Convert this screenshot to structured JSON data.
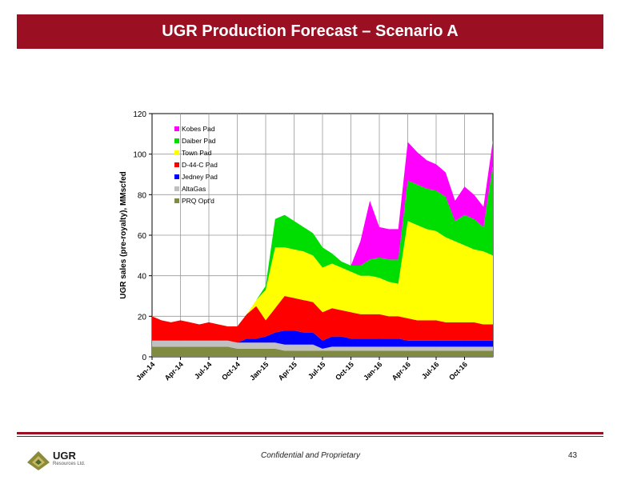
{
  "header": {
    "title": "UGR Production Forecast – Scenario A"
  },
  "footer": {
    "confidential": "Confidential and Proprietary",
    "page_number": "43",
    "logo_text": "UGR",
    "logo_subtext": "Resources Ltd."
  },
  "colors": {
    "banner": "#9b0f22"
  },
  "chart_data": {
    "type": "area",
    "stacked": true,
    "title": "",
    "xlabel": "",
    "ylabel": "UGR sales (pre-royalty), MMscfed",
    "ylim": [
      0,
      120
    ],
    "yticks": [
      0,
      20,
      40,
      60,
      80,
      100,
      120
    ],
    "xlim": [
      "Jan-14",
      "Jan-17"
    ],
    "xticks": [
      "Jan-14",
      "Apr-14",
      "Jul-14",
      "Oct-14",
      "Jan-15",
      "Apr-15",
      "Jul-15",
      "Oct-15",
      "Jan-16",
      "Apr-16",
      "Jul-16",
      "Oct-16"
    ],
    "grid": true,
    "legend_position": "top-left",
    "x": [
      0,
      1,
      2,
      3,
      4,
      5,
      6,
      7,
      8,
      9,
      10,
      11,
      12,
      13,
      14,
      15,
      16,
      17,
      18,
      19,
      20,
      21,
      22,
      23,
      24,
      25,
      26,
      27,
      28,
      29,
      30,
      31,
      32,
      33,
      34,
      35,
      36
    ],
    "x_unit": "months since Jan-14",
    "series": [
      {
        "name": "PRQ Opt'd",
        "color": "#808a40",
        "values": [
          5,
          5,
          5,
          5,
          5,
          5,
          5,
          5,
          5,
          4,
          4,
          4,
          4,
          4,
          3,
          3,
          3,
          3,
          3,
          3,
          3,
          3,
          3,
          3,
          3,
          3,
          3,
          3,
          3,
          3,
          3,
          3,
          3,
          3,
          3,
          3,
          3
        ]
      },
      {
        "name": "AltaGas",
        "color": "#c0c0c0",
        "values": [
          3,
          3,
          3,
          3,
          3,
          3,
          3,
          3,
          3,
          3,
          3,
          3,
          3,
          3,
          3,
          3,
          3,
          3,
          1,
          2,
          2,
          2,
          2,
          2,
          2,
          2,
          2,
          2,
          2,
          2,
          2,
          2,
          2,
          2,
          2,
          2,
          2
        ]
      },
      {
        "name": "Jedney Pad",
        "color": "#0000ff",
        "values": [
          0,
          0,
          0,
          0,
          0,
          0,
          0,
          0,
          0,
          0,
          2,
          2,
          3,
          5,
          7,
          7,
          6,
          6,
          4,
          5,
          5,
          4,
          4,
          4,
          4,
          4,
          4,
          3,
          3,
          3,
          3,
          3,
          3,
          3,
          3,
          3,
          3
        ]
      },
      {
        "name": "D-44-C Pad",
        "color": "#ff0000",
        "values": [
          12,
          10,
          9,
          10,
          9,
          8,
          9,
          8,
          7,
          8,
          12,
          16,
          8,
          12,
          17,
          16,
          16,
          15,
          14,
          14,
          13,
          13,
          12,
          12,
          12,
          11,
          11,
          11,
          10,
          10,
          10,
          9,
          9,
          9,
          9,
          8,
          8
        ]
      },
      {
        "name": "Town Pad",
        "color": "#ffff00",
        "values": [
          0,
          0,
          0,
          0,
          0,
          0,
          0,
          0,
          0,
          0,
          0,
          3,
          15,
          30,
          24,
          24,
          24,
          23,
          22,
          22,
          21,
          20,
          19,
          19,
          18,
          17,
          16,
          48,
          47,
          45,
          44,
          42,
          40,
          38,
          36,
          36,
          34
        ]
      },
      {
        "name": "Daiber Pad",
        "color": "#00dd00",
        "values": [
          0,
          0,
          0,
          0,
          0,
          0,
          0,
          0,
          0,
          0,
          0,
          0,
          2,
          14,
          16,
          14,
          12,
          11,
          10,
          5,
          3,
          3,
          5,
          8,
          10,
          11,
          12,
          20,
          20,
          20,
          20,
          20,
          10,
          15,
          15,
          12,
          45
        ]
      },
      {
        "name": "Kobes Pad",
        "color": "#ff00ff",
        "values": [
          0,
          0,
          0,
          0,
          0,
          0,
          0,
          0,
          0,
          0,
          0,
          0,
          0,
          0,
          0,
          0,
          0,
          0,
          0,
          0,
          0,
          0,
          12,
          29,
          15,
          15,
          15,
          19,
          16,
          14,
          13,
          12,
          10,
          14,
          12,
          10,
          12
        ]
      }
    ]
  }
}
